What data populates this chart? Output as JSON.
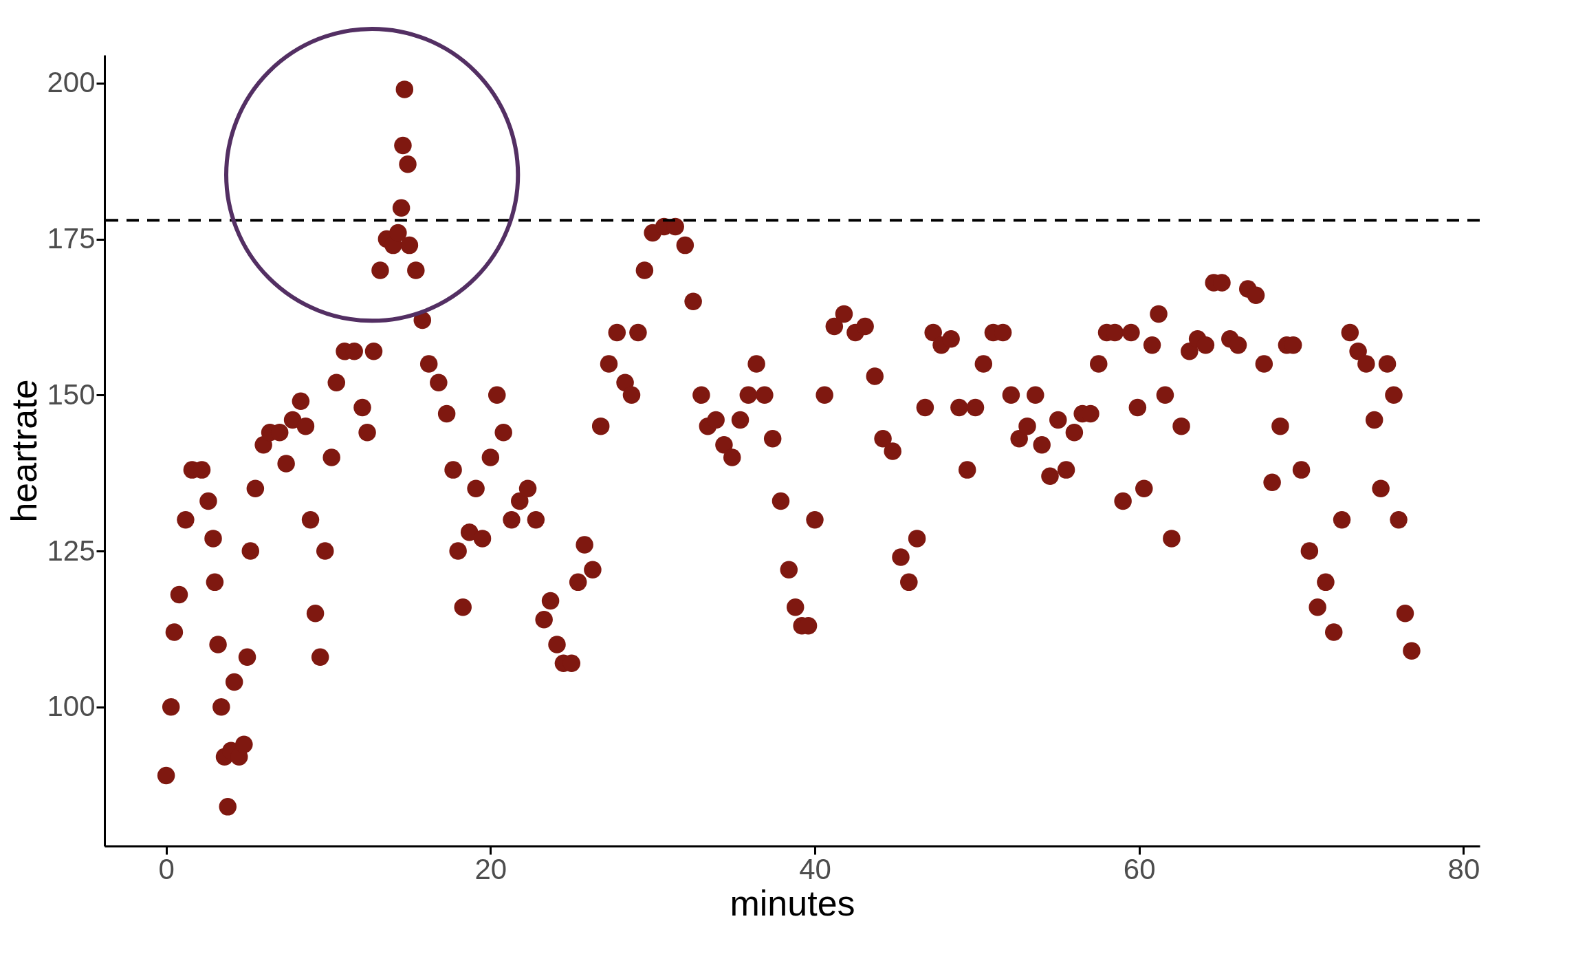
{
  "chart_data": {
    "type": "scatter",
    "xlabel": "minutes",
    "ylabel": "heartrate",
    "xlim": [
      -3.8,
      81
    ],
    "xticks": [
      0,
      20,
      40,
      60,
      80
    ],
    "ylim": [
      77.7,
      204.5
    ],
    "yticks": [
      100,
      125,
      150,
      175,
      200
    ],
    "grid": false,
    "marker": "circle",
    "ref_lines": [
      {
        "axis": "y",
        "value": 178,
        "color": "#000000",
        "line_style": "dashed"
      }
    ],
    "series": [
      {
        "color": "#7f1810",
        "x": [
          0,
          0.3,
          0.5,
          0.8,
          1.2,
          1.6,
          2.2,
          2.6,
          2.9,
          3.0,
          3.2,
          3.4,
          3.6,
          3.8,
          4.0,
          4.2,
          4.5,
          4.8,
          5.0,
          5.2,
          5.5,
          6.0,
          6.4,
          7.0,
          7.4,
          7.8,
          8.3,
          8.6,
          8.9,
          9.2,
          9.5,
          9.8,
          10.2,
          10.5,
          11.0,
          11.6,
          12.1,
          12.4,
          12.8,
          13.2,
          13.6,
          14.0,
          14.3,
          14.5,
          14.6,
          14.7,
          14.9,
          15.0,
          15.4,
          15.8,
          16.2,
          16.8,
          17.3,
          17.7,
          18.0,
          18.3,
          18.7,
          19.1,
          19.5,
          20.0,
          20.4,
          20.8,
          21.3,
          21.8,
          22.3,
          22.8,
          23.3,
          23.7,
          24.1,
          24.5,
          25.0,
          25.4,
          25.8,
          26.3,
          26.8,
          27.3,
          27.8,
          28.3,
          28.7,
          29.1,
          29.5,
          30.0,
          30.7,
          31.4,
          32.0,
          32.5,
          33.0,
          33.4,
          33.9,
          34.4,
          34.9,
          35.4,
          35.9,
          36.4,
          36.9,
          37.4,
          37.9,
          38.4,
          38.8,
          39.2,
          39.6,
          40.0,
          40.6,
          41.2,
          41.8,
          42.5,
          43.1,
          43.7,
          44.2,
          44.8,
          45.3,
          45.8,
          46.3,
          46.8,
          47.3,
          47.8,
          48.4,
          48.9,
          49.4,
          49.9,
          50.4,
          51.0,
          51.6,
          52.1,
          52.6,
          53.1,
          53.6,
          54.0,
          54.5,
          55.0,
          55.5,
          56.0,
          56.5,
          57.0,
          57.5,
          58.0,
          58.5,
          59.0,
          59.5,
          59.9,
          60.3,
          60.8,
          61.2,
          61.6,
          62.0,
          62.6,
          63.1,
          63.6,
          64.1,
          64.6,
          65.1,
          65.6,
          66.1,
          66.7,
          67.2,
          67.7,
          68.2,
          68.7,
          69.1,
          69.5,
          70.0,
          70.5,
          71.0,
          71.5,
          72.0,
          72.5,
          73.0,
          73.5,
          74.0,
          74.5,
          74.9,
          75.3,
          75.7,
          76.0,
          76.4,
          76.8
        ],
        "values": [
          89,
          100,
          112,
          118,
          130,
          138,
          138,
          133,
          127,
          120,
          110,
          100,
          92,
          84,
          93,
          104,
          92,
          94,
          108,
          125,
          135,
          142,
          144,
          144,
          139,
          146,
          149,
          145,
          130,
          115,
          108,
          125,
          140,
          152,
          157,
          157,
          148,
          144,
          157,
          170,
          175,
          174,
          176,
          180,
          190,
          199,
          187,
          174,
          170,
          162,
          155,
          152,
          147,
          138,
          125,
          116,
          128,
          135,
          127,
          140,
          150,
          144,
          130,
          133,
          135,
          130,
          114,
          117,
          110,
          107,
          107,
          120,
          126,
          122,
          145,
          155,
          160,
          152,
          150,
          160,
          170,
          176,
          177,
          177,
          174,
          165,
          150,
          145,
          146,
          142,
          140,
          146,
          150,
          155,
          150,
          143,
          133,
          122,
          116,
          113,
          113,
          130,
          150,
          161,
          163,
          160,
          161,
          153,
          143,
          141,
          124,
          120,
          127,
          148,
          160,
          158,
          159,
          148,
          138,
          148,
          155,
          160,
          160,
          150,
          143,
          145,
          150,
          142,
          137,
          146,
          138,
          144,
          147,
          147,
          155,
          160,
          160,
          133,
          160,
          148,
          135,
          158,
          163,
          150,
          127,
          145,
          157,
          159,
          158,
          168,
          168,
          159,
          158,
          167,
          166,
          155,
          136,
          145,
          158,
          158,
          138,
          125,
          116,
          120,
          112,
          130,
          160,
          157,
          155,
          146,
          135,
          155,
          150,
          130,
          115,
          109
        ]
      }
    ]
  }
}
